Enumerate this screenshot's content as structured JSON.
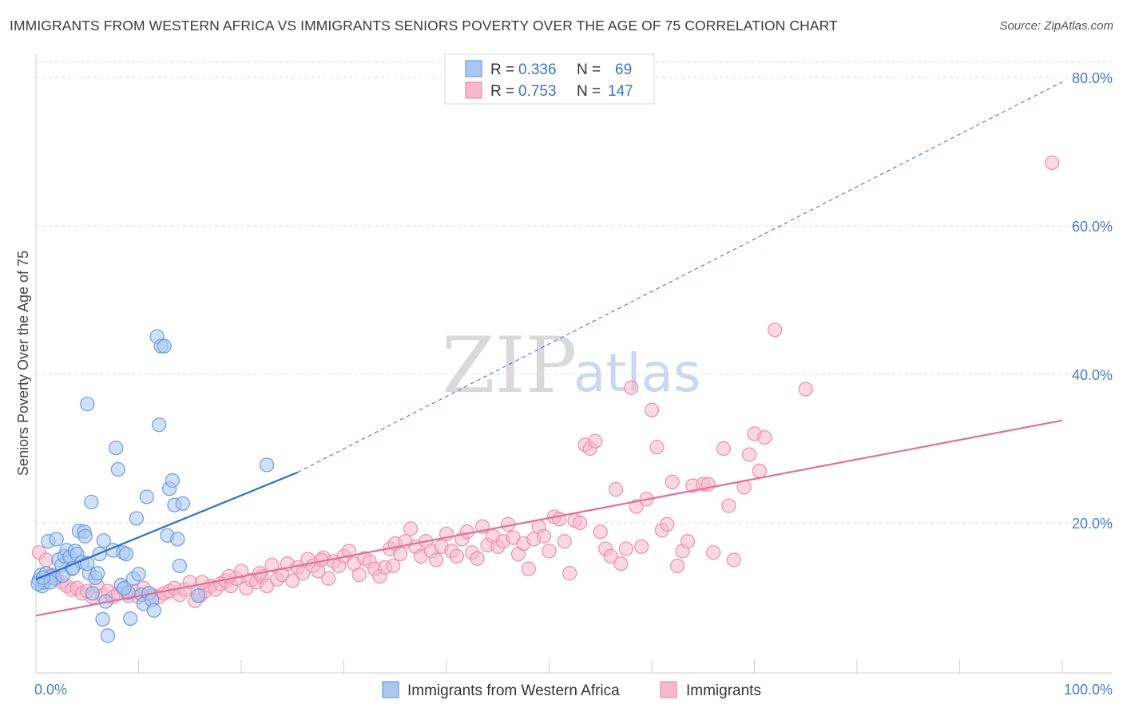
{
  "header": {
    "title": "IMMIGRANTS FROM WESTERN AFRICA VS IMMIGRANTS SENIORS POVERTY OVER THE AGE OF 75 CORRELATION CHART",
    "source": "Source: ZipAtlas.com"
  },
  "watermark": {
    "zip": "ZIP",
    "atlas": "atlas"
  },
  "colors": {
    "blue_fill": "#a9c8f0",
    "blue_stroke": "#6b9be0",
    "blue_line": "#2d6fcf",
    "pink_fill": "#f6b8cb",
    "pink_stroke": "#ec8fac",
    "pink_line": "#e0709a",
    "grid": "#dcdcdc",
    "tick_label": "#4a7cc9"
  },
  "chart_data": {
    "type": "scatter",
    "title": "IMMIGRANTS FROM WESTERN AFRICA VS IMMIGRANTS SENIORS POVERTY OVER THE AGE OF 75 CORRELATION CHART",
    "xlabel": "",
    "ylabel": "Seniors Poverty Over the Age of 75",
    "xlim": [
      0,
      100
    ],
    "ylim": [
      0,
      80
    ],
    "x_tick_labels": [
      "0.0%",
      "100.0%"
    ],
    "y_ticks": [
      {
        "value": 20,
        "label": "20.0%"
      },
      {
        "value": 40,
        "label": "40.0%"
      },
      {
        "value": 60,
        "label": "60.0%"
      },
      {
        "value": 80,
        "label": "80.0%"
      }
    ],
    "grid": true,
    "legend": {
      "placement": "top-center",
      "entries": [
        {
          "r_label": "R =",
          "r_value": "0.336",
          "n_label": "N =",
          "n_value": "69"
        },
        {
          "r_label": "R =",
          "r_value": "0.753",
          "n_label": "N =",
          "n_value": "147"
        }
      ]
    },
    "series": [
      {
        "name": "Immigrants from Western Africa",
        "color": "blue",
        "trend": {
          "x0": 0,
          "y0": 12.4,
          "x1": 25.5,
          "y1": 26.8,
          "dashed_to_x": 100,
          "dashed_to_y": 79.4
        },
        "points": [
          [
            0.3,
            12.3
          ],
          [
            0.5,
            13.0
          ],
          [
            0.6,
            11.5
          ],
          [
            0.8,
            12.0
          ],
          [
            1.0,
            13.2
          ],
          [
            1.2,
            17.5
          ],
          [
            1.5,
            12.8
          ],
          [
            1.8,
            12.5
          ],
          [
            2.0,
            17.8
          ],
          [
            2.2,
            15.0
          ],
          [
            2.5,
            14.3
          ],
          [
            2.8,
            15.5
          ],
          [
            3.0,
            16.3
          ],
          [
            3.3,
            15.4
          ],
          [
            3.5,
            13.8
          ],
          [
            3.8,
            16.2
          ],
          [
            4.0,
            15.8
          ],
          [
            4.2,
            18.9
          ],
          [
            4.5,
            14.7
          ],
          [
            4.7,
            18.8
          ],
          [
            5.0,
            36.0
          ],
          [
            5.2,
            13.2
          ],
          [
            5.5,
            10.5
          ],
          [
            5.8,
            12.6
          ],
          [
            5.0,
            14.5
          ],
          [
            6.0,
            13.2
          ],
          [
            6.2,
            15.8
          ],
          [
            6.5,
            7.0
          ],
          [
            6.8,
            9.4
          ],
          [
            7.0,
            4.8
          ],
          [
            7.5,
            16.3
          ],
          [
            7.8,
            30.1
          ],
          [
            8.0,
            27.2
          ],
          [
            8.3,
            11.6
          ],
          [
            8.5,
            16.0
          ],
          [
            8.8,
            15.8
          ],
          [
            9.0,
            10.6
          ],
          [
            9.2,
            7.1
          ],
          [
            9.5,
            12.5
          ],
          [
            9.8,
            20.6
          ],
          [
            10.0,
            13.1
          ],
          [
            10.3,
            10.3
          ],
          [
            10.5,
            9.1
          ],
          [
            10.8,
            23.5
          ],
          [
            11.0,
            10.5
          ],
          [
            11.3,
            9.6
          ],
          [
            11.5,
            8.2
          ],
          [
            11.8,
            45.1
          ],
          [
            12.2,
            43.8
          ],
          [
            12.5,
            43.8
          ],
          [
            12.0,
            33.2
          ],
          [
            12.8,
            18.3
          ],
          [
            13.0,
            24.6
          ],
          [
            13.3,
            25.7
          ],
          [
            13.5,
            22.4
          ],
          [
            13.8,
            17.8
          ],
          [
            14.0,
            14.2
          ],
          [
            14.3,
            22.6
          ],
          [
            15.8,
            10.2
          ],
          [
            22.5,
            27.8
          ],
          [
            4.8,
            18.2
          ],
          [
            6.6,
            17.6
          ],
          [
            5.4,
            22.8
          ],
          [
            1.4,
            12.0
          ],
          [
            2.6,
            12.9
          ],
          [
            0.2,
            11.8
          ],
          [
            0.7,
            12.6
          ],
          [
            3.6,
            13.9
          ],
          [
            8.6,
            11.2
          ]
        ]
      },
      {
        "name": "Immigrants",
        "color": "pink",
        "trend": {
          "x0": 0,
          "y0": 7.5,
          "x1": 100,
          "y1": 33.8
        },
        "points": [
          [
            0.3,
            16.0
          ],
          [
            1.0,
            15.0
          ],
          [
            1.5,
            13.0
          ],
          [
            2.0,
            12.5
          ],
          [
            2.5,
            12.0
          ],
          [
            3.0,
            11.5
          ],
          [
            3.5,
            11.0
          ],
          [
            4.0,
            11.2
          ],
          [
            4.5,
            10.5
          ],
          [
            5.0,
            10.8
          ],
          [
            5.5,
            10.0
          ],
          [
            6.0,
            11.5
          ],
          [
            6.5,
            10.2
          ],
          [
            7.0,
            10.8
          ],
          [
            7.5,
            10.0
          ],
          [
            8.0,
            10.5
          ],
          [
            8.5,
            11.0
          ],
          [
            9.0,
            10.2
          ],
          [
            9.5,
            10.8
          ],
          [
            10.0,
            10.0
          ],
          [
            10.5,
            11.2
          ],
          [
            11.0,
            10.5
          ],
          [
            11.5,
            10.2
          ],
          [
            12.0,
            10.0
          ],
          [
            12.5,
            10.5
          ],
          [
            13.0,
            10.8
          ],
          [
            13.5,
            11.2
          ],
          [
            14.0,
            10.3
          ],
          [
            14.5,
            11.0
          ],
          [
            15.0,
            12.0
          ],
          [
            15.5,
            9.5
          ],
          [
            16.0,
            10.2
          ],
          [
            16.5,
            10.8
          ],
          [
            17.0,
            11.5
          ],
          [
            17.5,
            11.0
          ],
          [
            18.0,
            11.8
          ],
          [
            18.5,
            12.2
          ],
          [
            19.0,
            11.5
          ],
          [
            19.5,
            12.5
          ],
          [
            20.0,
            13.5
          ],
          [
            20.5,
            11.2
          ],
          [
            21.0,
            12.3
          ],
          [
            21.5,
            12.0
          ],
          [
            22.0,
            12.8
          ],
          [
            22.5,
            11.5
          ],
          [
            23.0,
            14.3
          ],
          [
            23.5,
            12.4
          ],
          [
            24.0,
            13.0
          ],
          [
            24.5,
            14.5
          ],
          [
            25.0,
            12.2
          ],
          [
            25.5,
            14.0
          ],
          [
            26.0,
            13.2
          ],
          [
            26.5,
            15.1
          ],
          [
            27.0,
            14.2
          ],
          [
            27.5,
            13.5
          ],
          [
            28.0,
            15.3
          ],
          [
            28.5,
            12.5
          ],
          [
            29.0,
            14.8
          ],
          [
            29.5,
            14.2
          ],
          [
            30.0,
            15.5
          ],
          [
            30.5,
            16.2
          ],
          [
            31.0,
            14.5
          ],
          [
            31.5,
            13.0
          ],
          [
            32.0,
            15.2
          ],
          [
            32.5,
            14.8
          ],
          [
            33.0,
            13.8
          ],
          [
            33.5,
            12.8
          ],
          [
            34.0,
            14.0
          ],
          [
            34.5,
            16.5
          ],
          [
            35.0,
            17.2
          ],
          [
            35.5,
            15.8
          ],
          [
            36.0,
            17.5
          ],
          [
            36.5,
            19.2
          ],
          [
            37.0,
            16.8
          ],
          [
            37.5,
            15.5
          ],
          [
            38.0,
            17.5
          ],
          [
            38.5,
            16.2
          ],
          [
            39.0,
            15.0
          ],
          [
            39.5,
            16.8
          ],
          [
            40.0,
            18.5
          ],
          [
            40.5,
            16.2
          ],
          [
            41.0,
            15.5
          ],
          [
            41.5,
            17.8
          ],
          [
            42.0,
            18.8
          ],
          [
            42.5,
            16.0
          ],
          [
            43.0,
            15.2
          ],
          [
            43.5,
            19.5
          ],
          [
            44.0,
            17.0
          ],
          [
            44.5,
            18.2
          ],
          [
            45.0,
            16.8
          ],
          [
            45.5,
            17.5
          ],
          [
            46.0,
            19.8
          ],
          [
            46.5,
            18.0
          ],
          [
            47.0,
            15.8
          ],
          [
            47.5,
            17.2
          ],
          [
            48.0,
            13.8
          ],
          [
            48.5,
            17.8
          ],
          [
            49.0,
            19.5
          ],
          [
            49.5,
            18.2
          ],
          [
            50.0,
            16.2
          ],
          [
            50.5,
            20.8
          ],
          [
            51.0,
            20.5
          ],
          [
            51.5,
            17.5
          ],
          [
            52.0,
            13.2
          ],
          [
            52.5,
            20.3
          ],
          [
            53.0,
            20.0
          ],
          [
            53.5,
            30.5
          ],
          [
            54.0,
            30.0
          ],
          [
            54.5,
            31.0
          ],
          [
            55.0,
            18.8
          ],
          [
            55.5,
            16.5
          ],
          [
            56.0,
            15.5
          ],
          [
            56.5,
            24.5
          ],
          [
            57.0,
            14.5
          ],
          [
            57.5,
            16.5
          ],
          [
            58.0,
            38.2
          ],
          [
            58.5,
            22.2
          ],
          [
            59.0,
            16.8
          ],
          [
            59.5,
            23.2
          ],
          [
            60.0,
            35.2
          ],
          [
            60.5,
            30.2
          ],
          [
            61.0,
            19.0
          ],
          [
            61.5,
            19.8
          ],
          [
            62.0,
            25.5
          ],
          [
            62.5,
            14.2
          ],
          [
            63.0,
            16.2
          ],
          [
            63.5,
            17.5
          ],
          [
            64.0,
            25.0
          ],
          [
            65.0,
            25.2
          ],
          [
            65.5,
            25.2
          ],
          [
            66.0,
            16.0
          ],
          [
            67.0,
            30.0
          ],
          [
            67.5,
            22.3
          ],
          [
            68.0,
            15.0
          ],
          [
            69.0,
            24.8
          ],
          [
            69.5,
            29.2
          ],
          [
            70.0,
            32.0
          ],
          [
            70.5,
            27.0
          ],
          [
            71.0,
            31.5
          ],
          [
            72.0,
            46.0
          ],
          [
            75.0,
            38.0
          ],
          [
            99.0,
            68.5
          ],
          [
            16.2,
            12.0
          ],
          [
            18.8,
            12.8
          ],
          [
            21.8,
            13.2
          ],
          [
            27.8,
            15.0
          ],
          [
            34.8,
            14.2
          ]
        ]
      }
    ]
  },
  "bottom_legend": [
    {
      "label": "Immigrants from Western Africa"
    },
    {
      "label": "Immigrants"
    }
  ]
}
